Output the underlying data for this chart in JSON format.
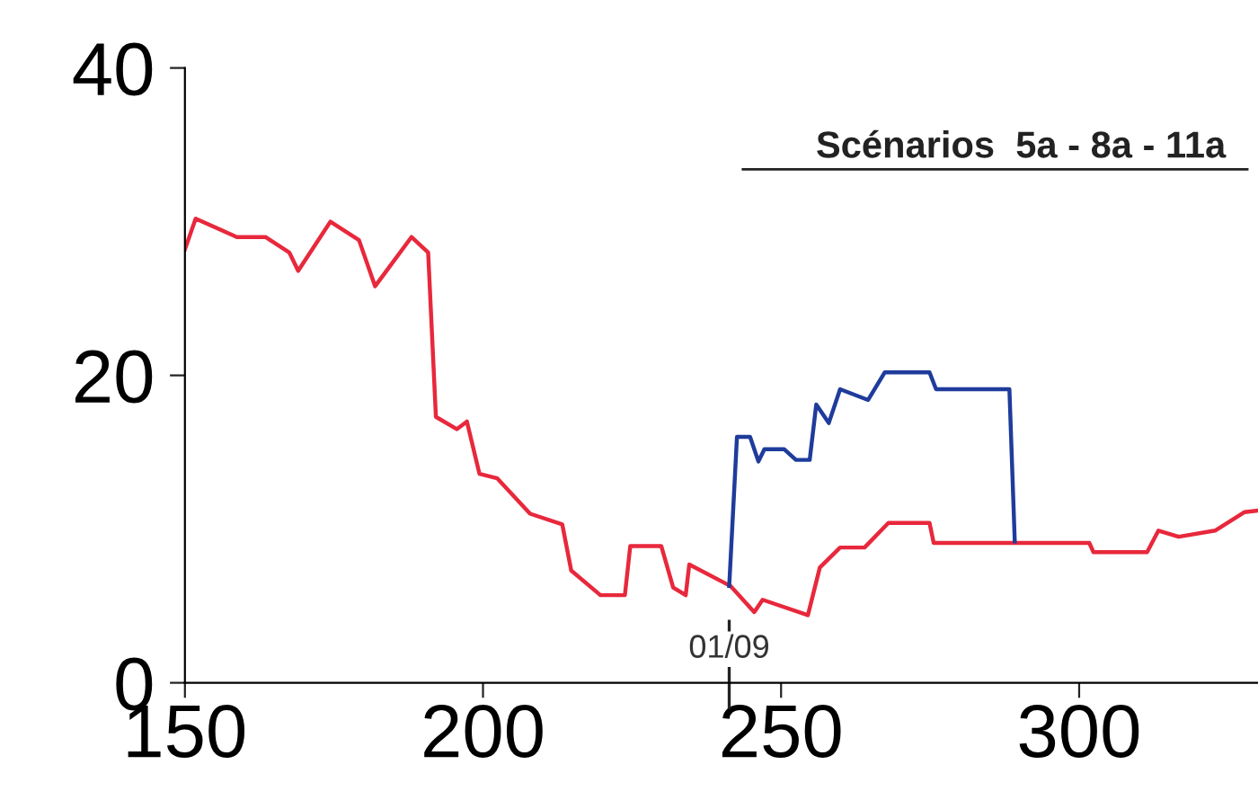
{
  "chart_data": {
    "type": "line",
    "annotations": [
      "Scénarios  5a - 8a - 11a",
      "01/09"
    ],
    "ref_lines": [
      {
        "axis": "x",
        "value": 241.3,
        "color": "#222222"
      }
    ],
    "series": [
      {
        "color": "#e8283c",
        "x": [
          150,
          151.8,
          158.7,
          163.5,
          167.5,
          169,
          174.4,
          179.2,
          181.9,
          184,
          188,
          190.8,
          192.1,
          195.6,
          197.3,
          199.4,
          202.4,
          207.9,
          213.3,
          214.8,
          219.7,
          223.8,
          224.7,
          229.9,
          231.9,
          234,
          234.6,
          241.5,
          245.5,
          246.9,
          254.5,
          256.5,
          259.9,
          264,
          268,
          274.9,
          275.6,
          301.7,
          302.4,
          311.4,
          313.3,
          316.7,
          322.8,
          327.7,
          330
        ],
        "values": [
          28.2,
          30.2,
          29,
          29,
          28,
          26.8,
          30,
          28.8,
          25.8,
          26.9,
          29,
          28,
          17.3,
          16.5,
          17,
          13.6,
          13.3,
          11,
          10.3,
          7.3,
          5.7,
          5.7,
          8.9,
          8.9,
          6.2,
          5.7,
          7.7,
          6.3,
          4.6,
          5.4,
          4.4,
          7.5,
          8.8,
          8.8,
          10.4,
          10.4,
          9.1,
          9.1,
          8.5,
          8.5,
          9.9,
          9.5,
          9.9,
          11.1,
          11.2
        ]
      },
      {
        "color": "#1f3c9c",
        "x": [
          241.3,
          242.6,
          244.8,
          246.2,
          247.2,
          250.5,
          252.5,
          254.8,
          255.9,
          258,
          259.9,
          264.6,
          267.4,
          274.9,
          276,
          288.3,
          289.2
        ],
        "values": [
          6.3,
          16,
          16,
          14.4,
          15.2,
          15.2,
          14.5,
          14.5,
          18.1,
          16.9,
          19.1,
          18.4,
          20.2,
          20.2,
          19.1,
          19.1,
          9.2
        ]
      }
    ],
    "xlim": [
      150,
      330
    ],
    "xticks": [
      150,
      200,
      250,
      300
    ],
    "ylim": [
      0,
      40
    ],
    "yticks": [
      0,
      20,
      40
    ],
    "grid": false,
    "legend": false,
    "marker": "none",
    "line_style": "solid"
  }
}
